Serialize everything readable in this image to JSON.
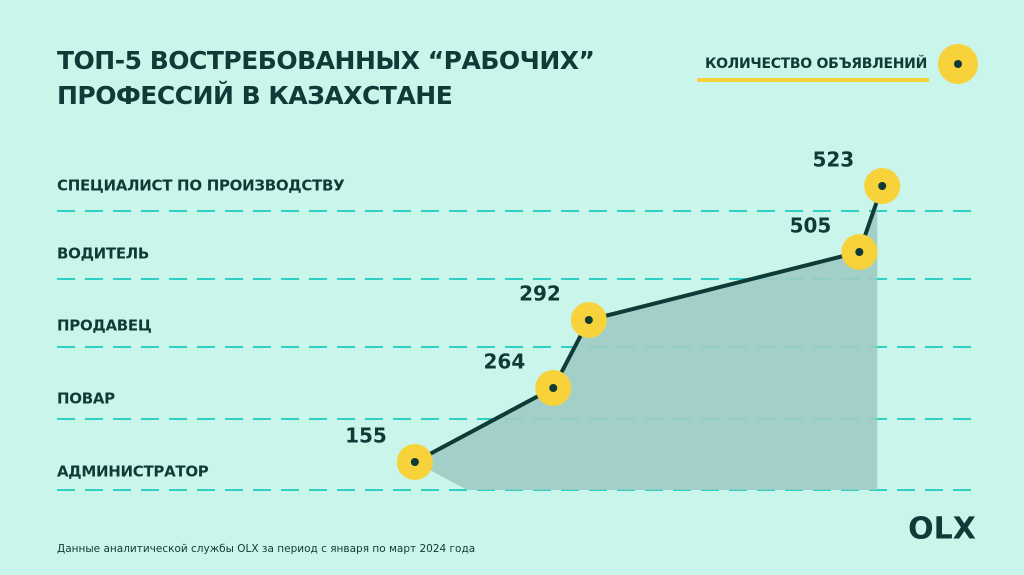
{
  "chart_data": {
    "type": "line",
    "title": [
      "ТОП-5 ВОСТРЕБОВАННЫХ “РАБОЧИХ”",
      "ПРОФЕССИЙ В КАЗАХСТАНЕ"
    ],
    "categories": [
      "СПЕЦИАЛИСТ ПО ПРОИЗВОДСТВУ",
      "ВОДИТЕЛЬ",
      "ПРОДАВЕЦ",
      "ПОВАР",
      "АДМИНИСТРАТОР"
    ],
    "series": [
      {
        "name": "КОЛИЧЕСТВО ОБЪЯВЛЕНИЙ",
        "color": "#f8d23a",
        "values": [
          523,
          505,
          292,
          264,
          155
        ]
      }
    ],
    "xlim": [
      0,
      600
    ],
    "grid": true,
    "legend": "top-right",
    "note": "Данные аналитической службы OLX за период с января по март 2024 года",
    "logo": "OLX"
  }
}
